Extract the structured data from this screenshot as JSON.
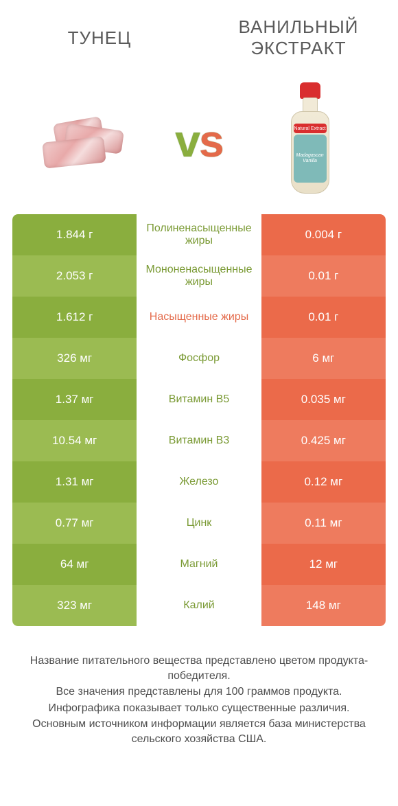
{
  "colors": {
    "left_a": "#8aae3e",
    "left_b": "#9bbb52",
    "right_a": "#eb6a4a",
    "right_b": "#ee7b5e",
    "label_green": "#7a9a34",
    "label_orange": "#e46a4a",
    "bg": "#ffffff",
    "text": "#4d4d4d"
  },
  "header": {
    "left_title": "Тунец",
    "right_title": "Ванильный экстракт",
    "vs": "vs",
    "bottle_band": "Natural Extract",
    "bottle_label_line1": "Madagascan",
    "bottle_label_line2": "Vanilla"
  },
  "rows": [
    {
      "left": "1.844 г",
      "label": "Полиненасыщенные жиры",
      "right": "0.004 г",
      "winner": "left"
    },
    {
      "left": "2.053 г",
      "label": "Мононенасыщенные жиры",
      "right": "0.01 г",
      "winner": "left"
    },
    {
      "left": "1.612 г",
      "label": "Насыщенные жиры",
      "right": "0.01 г",
      "winner": "right"
    },
    {
      "left": "326 мг",
      "label": "Фосфор",
      "right": "6 мг",
      "winner": "left"
    },
    {
      "left": "1.37 мг",
      "label": "Витамин B5",
      "right": "0.035 мг",
      "winner": "left"
    },
    {
      "left": "10.54 мг",
      "label": "Витамин B3",
      "right": "0.425 мг",
      "winner": "left"
    },
    {
      "left": "1.31 мг",
      "label": "Железо",
      "right": "0.12 мг",
      "winner": "left"
    },
    {
      "left": "0.77 мг",
      "label": "Цинк",
      "right": "0.11 мг",
      "winner": "left"
    },
    {
      "left": "64 мг",
      "label": "Магний",
      "right": "12 мг",
      "winner": "left"
    },
    {
      "left": "323 мг",
      "label": "Калий",
      "right": "148 мг",
      "winner": "left"
    }
  ],
  "footer": {
    "lines": [
      "Название питательного вещества представлено цветом продукта-победителя.",
      "Все значения представлены для 100 граммов продукта.",
      "Инфографика показывает только существенные различия.",
      "Основным источником информации является база министерства сельского хозяйства США."
    ]
  }
}
